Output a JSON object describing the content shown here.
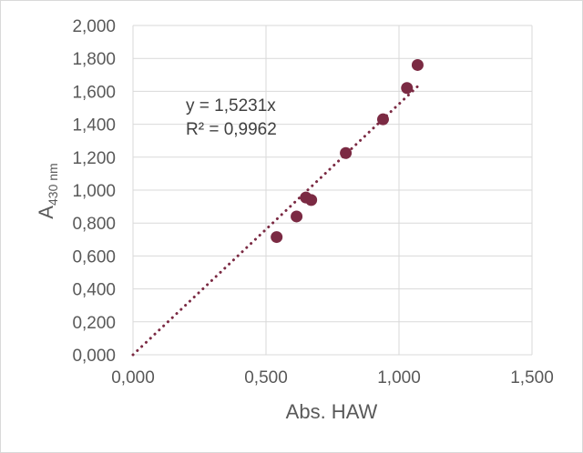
{
  "chart_data": {
    "type": "scatter",
    "xlabel": "Abs. HAW",
    "ylabel_main": "A",
    "ylabel_sub": "430 nm",
    "xlim": [
      0,
      1.5
    ],
    "ylim": [
      0,
      2.0
    ],
    "x_ticks": [
      "0,000",
      "0,500",
      "1,000",
      "1,500"
    ],
    "y_ticks": [
      "0,000",
      "0,200",
      "0,400",
      "0,600",
      "0,800",
      "1,000",
      "1,200",
      "1,400",
      "1,600",
      "1,800",
      "2,000"
    ],
    "x_tick_values": [
      0,
      0.5,
      1.0,
      1.5
    ],
    "y_tick_values": [
      0,
      0.2,
      0.4,
      0.6,
      0.8,
      1.0,
      1.2,
      1.4,
      1.6,
      1.8,
      2.0
    ],
    "grid": true,
    "series": [
      {
        "x": [
          0.54,
          0.615,
          0.65,
          0.67,
          0.8,
          0.94,
          1.03,
          1.07
        ],
        "y": [
          0.715,
          0.84,
          0.955,
          0.94,
          1.225,
          1.43,
          1.62,
          1.76
        ],
        "color": "#7b2a43"
      }
    ],
    "trendline": {
      "slope": 1.5231,
      "x_range": [
        0,
        1.07
      ],
      "style": "dotted",
      "color": "#7b2a43"
    },
    "annotations": [
      "y = 1,5231x",
      "R² = 0,9962"
    ]
  }
}
